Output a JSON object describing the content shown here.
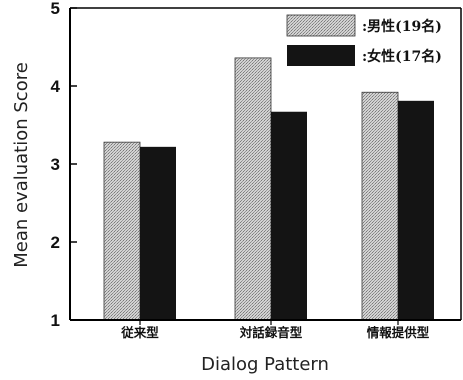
{
  "chart_data": {
    "type": "bar",
    "categories": [
      "従来型",
      "対話録音型",
      "情報提供型"
    ],
    "series": [
      {
        "name": ":男性(19名)",
        "values": [
          3.28,
          4.36,
          3.92
        ],
        "color": "#c4c4c4",
        "pattern": "stipple-light"
      },
      {
        "name": ":女性(17名)",
        "values": [
          3.22,
          3.67,
          3.81
        ],
        "color": "#141414",
        "pattern": "solid-dark"
      }
    ],
    "title": "",
    "xlabel": "Dialog Pattern",
    "ylabel": "Mean evaluation Score",
    "ylim": [
      1,
      5
    ],
    "yticks": [
      1,
      2,
      3,
      4,
      5
    ],
    "grid": false,
    "legend_position": "top-right"
  }
}
